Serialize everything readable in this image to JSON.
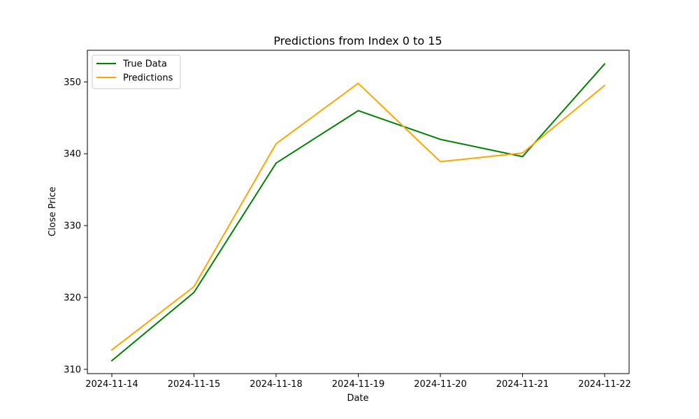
{
  "chart_data": {
    "type": "line",
    "title": "Predictions from Index 0 to 15",
    "xlabel": "Date",
    "ylabel": "Close Price",
    "categories": [
      "2024-11-14",
      "2024-11-15",
      "2024-11-18",
      "2024-11-19",
      "2024-11-20",
      "2024-11-21",
      "2024-11-22"
    ],
    "ylim": [
      309.4,
      354.4
    ],
    "yticks": [
      310,
      320,
      330,
      340,
      350
    ],
    "grid": false,
    "legend_position": "top-left",
    "series": [
      {
        "name": "True Data",
        "color": "#008000",
        "values": [
          311.2,
          320.7,
          338.7,
          346.0,
          342.0,
          339.6,
          352.5
        ]
      },
      {
        "name": "Predictions",
        "color": "#FFA500",
        "values": [
          312.7,
          321.5,
          341.4,
          349.8,
          338.9,
          340.1,
          349.5
        ]
      }
    ]
  }
}
